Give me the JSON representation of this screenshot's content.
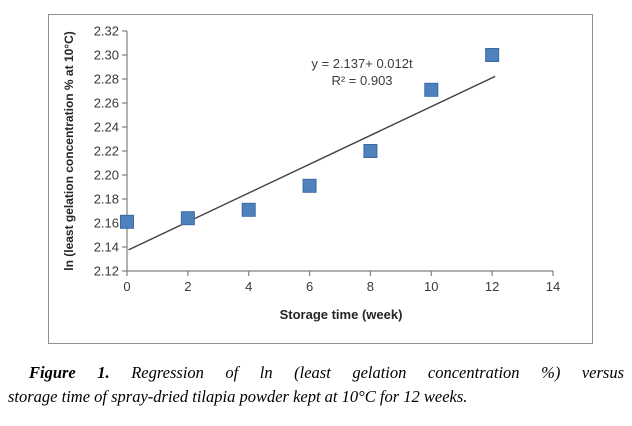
{
  "figure": {
    "caption": {
      "label": "Figure 1.",
      "line1_rest": " Regression of ln (least gelation concentration %) versus",
      "line2": "storage time of spray-dried tilapia powder kept at 10°C for 12 weeks."
    }
  },
  "chart_data": {
    "type": "scatter",
    "x": [
      0,
      2,
      4,
      6,
      8,
      10,
      12
    ],
    "y": [
      2.161,
      2.164,
      2.171,
      2.191,
      2.22,
      2.271,
      2.3
    ],
    "xlabel": "Storage time (week)",
    "ylabel": "ln (least gelation concentration % at 10°C)",
    "xlim": [
      0,
      14
    ],
    "ylim": [
      2.12,
      2.32
    ],
    "xticks": [
      "0",
      "2",
      "4",
      "6",
      "8",
      "10",
      "12",
      "14"
    ],
    "yticks": [
      "2.12",
      "2.14",
      "2.16",
      "2.18",
      "2.20",
      "2.22",
      "2.24",
      "2.26",
      "2.28",
      "2.30",
      "2.32"
    ],
    "trendline": {
      "equation": "y =  2.137+ 0.012t",
      "r_squared": "R² = 0.903",
      "intercept": 2.137,
      "slope": 0.012,
      "x_start": 0.05,
      "x_end": 12.1
    },
    "grid": false,
    "legend": "none",
    "marker_color": "#4F81BD",
    "marker_edge_color": "#3A6BA5",
    "trend_color": "#3f3f3f",
    "axis_color": "#808080",
    "tick_label_color": "#3a3a3a"
  }
}
